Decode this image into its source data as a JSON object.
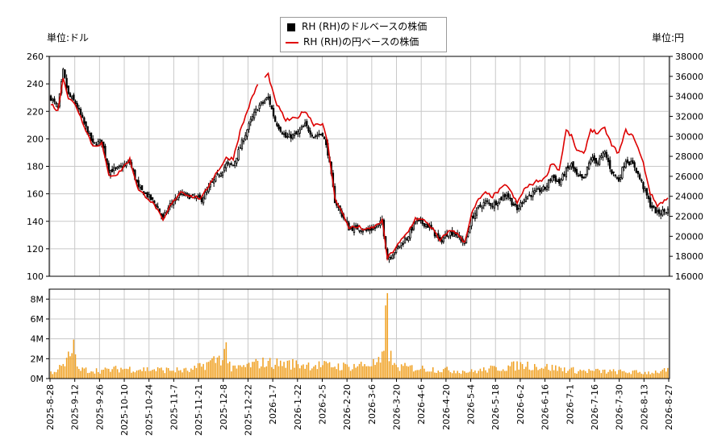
{
  "labels": {
    "left_unit": "単位:ドル",
    "right_unit": "単位:円"
  },
  "legend": {
    "usd": "RH (RH)のドルベースの株価",
    "jpy": "RH (RH)の円ベースの株価"
  },
  "chart_data": {
    "type": "candlestick+line+bar",
    "colors": {
      "candle": "#000000",
      "jpy_line": "#dd0000",
      "volume": "#f0a020",
      "grid": "#c8c8c8"
    },
    "x_tick_labels": [
      "2025-8-28",
      "2025-9-12",
      "2025-9-26",
      "2025-10-10",
      "2025-10-24",
      "2025-11-7",
      "2025-11-21",
      "2025-12-8",
      "2025-12-22",
      "2026-1-7",
      "2026-1-22",
      "2026-2-5",
      "2026-2-20",
      "2026-3-6",
      "2026-3-20",
      "2026-4-6",
      "2026-4-20",
      "2026-5-4",
      "2026-5-18",
      "2026-6-2",
      "2026-6-16",
      "2026-7-1",
      "2026-7-16",
      "2026-7-30",
      "2026-8-13",
      "2026-8-27"
    ],
    "left_axis": {
      "ylim": [
        100,
        260
      ],
      "ticks": [
        100,
        120,
        140,
        160,
        180,
        200,
        220,
        240,
        260
      ]
    },
    "right_axis": {
      "ylim": [
        16000,
        38000
      ],
      "ticks": [
        16000,
        18000,
        20000,
        22000,
        24000,
        26000,
        28000,
        30000,
        32000,
        34000,
        36000,
        38000
      ]
    },
    "volume_axis": {
      "ylim": [
        0,
        9000000
      ],
      "ticks": [
        0,
        2000000,
        4000000,
        6000000,
        8000000
      ],
      "tick_labels": [
        "0M",
        "2M",
        "4M",
        "6M",
        "8M"
      ]
    },
    "usd_close_keypoints": [
      [
        0,
        230
      ],
      [
        4,
        222
      ],
      [
        7,
        249
      ],
      [
        10,
        232
      ],
      [
        14,
        226
      ],
      [
        18,
        214
      ],
      [
        24,
        196
      ],
      [
        29,
        198
      ],
      [
        33,
        177
      ],
      [
        38,
        178
      ],
      [
        45,
        183
      ],
      [
        50,
        164
      ],
      [
        55,
        159
      ],
      [
        60,
        152
      ],
      [
        64,
        142
      ],
      [
        68,
        152
      ],
      [
        74,
        160
      ],
      [
        80,
        158
      ],
      [
        86,
        156
      ],
      [
        92,
        168
      ],
      [
        100,
        181
      ],
      [
        104,
        181
      ],
      [
        108,
        194
      ],
      [
        114,
        213
      ],
      [
        118,
        223
      ],
      [
        124,
        230
      ],
      [
        128,
        213
      ],
      [
        134,
        201
      ],
      [
        140,
        203
      ],
      [
        145,
        210
      ],
      [
        150,
        202
      ],
      [
        155,
        204
      ],
      [
        158,
        190
      ],
      [
        162,
        155
      ],
      [
        166,
        145
      ],
      [
        170,
        135
      ],
      [
        176,
        135
      ],
      [
        180,
        133
      ],
      [
        186,
        136
      ],
      [
        189,
        140
      ],
      [
        192,
        113
      ],
      [
        196,
        118
      ],
      [
        200,
        124
      ],
      [
        204,
        130
      ],
      [
        208,
        140
      ],
      [
        214,
        138
      ],
      [
        218,
        133
      ],
      [
        222,
        125
      ],
      [
        226,
        131
      ],
      [
        230,
        132
      ],
      [
        236,
        124
      ],
      [
        240,
        142
      ],
      [
        244,
        150
      ],
      [
        248,
        154
      ],
      [
        252,
        152
      ],
      [
        256,
        156
      ],
      [
        260,
        160
      ],
      [
        266,
        148
      ],
      [
        270,
        157
      ],
      [
        276,
        161
      ],
      [
        282,
        164
      ],
      [
        286,
        173
      ],
      [
        290,
        168
      ],
      [
        294,
        177
      ],
      [
        297,
        181
      ],
      [
        300,
        173
      ],
      [
        304,
        170
      ],
      [
        308,
        186
      ],
      [
        312,
        183
      ],
      [
        316,
        190
      ],
      [
        320,
        176
      ],
      [
        324,
        170
      ],
      [
        328,
        185
      ],
      [
        333,
        180
      ],
      [
        338,
        165
      ],
      [
        342,
        152
      ],
      [
        346,
        146
      ],
      [
        352,
        148
      ]
    ],
    "jpy_close_keypoints": [
      [
        0,
        33300
      ],
      [
        4,
        32500
      ],
      [
        7,
        36000
      ],
      [
        10,
        33800
      ],
      [
        14,
        33200
      ],
      [
        18,
        31500
      ],
      [
        24,
        29000
      ],
      [
        29,
        29300
      ],
      [
        33,
        26100
      ],
      [
        38,
        26200
      ],
      [
        45,
        27700
      ],
      [
        50,
        24600
      ],
      [
        55,
        23900
      ],
      [
        60,
        22900
      ],
      [
        64,
        21500
      ],
      [
        68,
        23000
      ],
      [
        74,
        24500
      ],
      [
        80,
        24000
      ],
      [
        86,
        23800
      ],
      [
        92,
        25700
      ],
      [
        100,
        27800
      ],
      [
        104,
        27800
      ],
      [
        108,
        30500
      ],
      [
        114,
        33500
      ],
      [
        118,
        35200
      ],
      [
        124,
        36200
      ],
      [
        128,
        33500
      ],
      [
        134,
        31600
      ],
      [
        140,
        31800
      ],
      [
        145,
        32600
      ],
      [
        150,
        31200
      ],
      [
        155,
        31300
      ],
      [
        158,
        29200
      ],
      [
        162,
        23900
      ],
      [
        166,
        22400
      ],
      [
        170,
        20900
      ],
      [
        176,
        20900
      ],
      [
        180,
        20600
      ],
      [
        186,
        21100
      ],
      [
        189,
        21600
      ],
      [
        192,
        17800
      ],
      [
        196,
        18700
      ],
      [
        200,
        19600
      ],
      [
        204,
        20500
      ],
      [
        208,
        21800
      ],
      [
        214,
        21500
      ],
      [
        218,
        20700
      ],
      [
        222,
        19500
      ],
      [
        226,
        20400
      ],
      [
        230,
        20600
      ],
      [
        236,
        19400
      ],
      [
        240,
        22200
      ],
      [
        244,
        23700
      ],
      [
        248,
        24300
      ],
      [
        252,
        24000
      ],
      [
        256,
        24600
      ],
      [
        260,
        25200
      ],
      [
        266,
        23300
      ],
      [
        270,
        24700
      ],
      [
        276,
        25400
      ],
      [
        282,
        25800
      ],
      [
        286,
        27400
      ],
      [
        290,
        26600
      ],
      [
        294,
        30600
      ],
      [
        297,
        30000
      ],
      [
        300,
        28600
      ],
      [
        304,
        28200
      ],
      [
        308,
        30700
      ],
      [
        312,
        30300
      ],
      [
        316,
        30800
      ],
      [
        320,
        29100
      ],
      [
        324,
        28300
      ],
      [
        328,
        30600
      ],
      [
        333,
        29800
      ],
      [
        338,
        27300
      ],
      [
        342,
        24300
      ],
      [
        346,
        23100
      ],
      [
        352,
        23800
      ]
    ],
    "jpy_gap": [
      119,
      121
    ],
    "volume_keypoints": [
      [
        0,
        0.6
      ],
      [
        8,
        1.3
      ],
      [
        14,
        3.6
      ],
      [
        15,
        0.9
      ],
      [
        30,
        0.8
      ],
      [
        40,
        1.0
      ],
      [
        80,
        0.8
      ],
      [
        98,
        2.2
      ],
      [
        100,
        3.0
      ],
      [
        103,
        0.9
      ],
      [
        120,
        1.6
      ],
      [
        170,
        1.2
      ],
      [
        188,
        1.6
      ],
      [
        190,
        2.4
      ],
      [
        192,
        8.6
      ],
      [
        193,
        2.6
      ],
      [
        196,
        1.2
      ],
      [
        240,
        0.7
      ],
      [
        270,
        1.4
      ],
      [
        300,
        0.8
      ],
      [
        340,
        0.6
      ],
      [
        352,
        0.8
      ]
    ],
    "volume_unit": 1000000,
    "n_days": 353
  }
}
